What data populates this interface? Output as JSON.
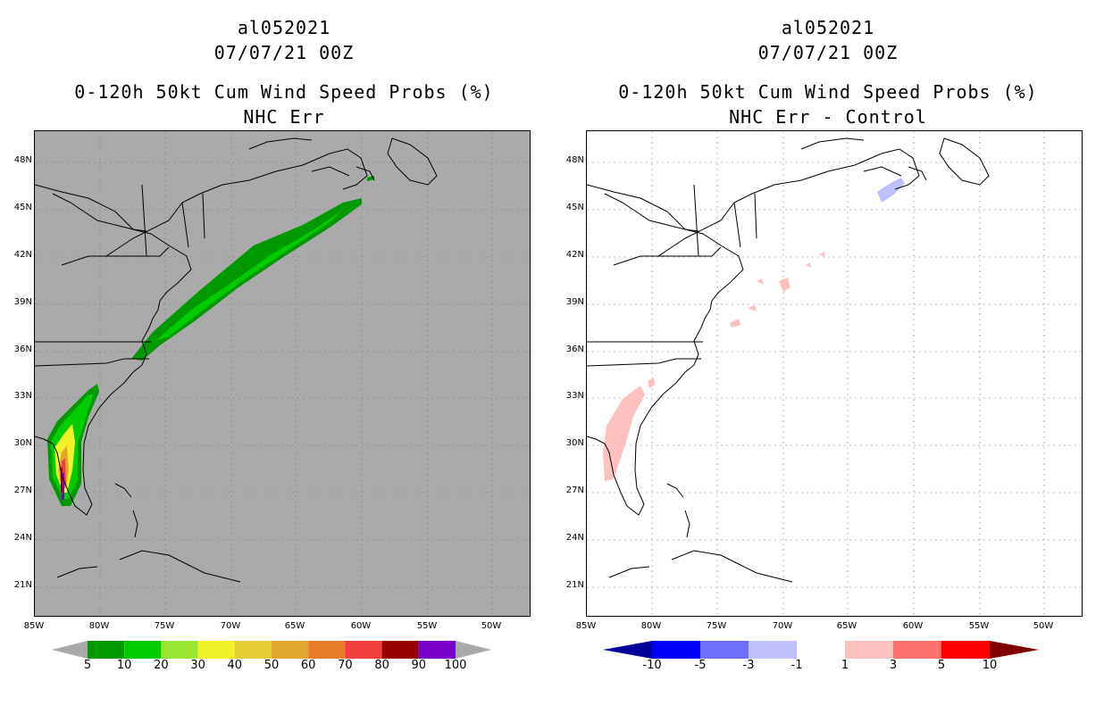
{
  "left": {
    "title1": "al052021",
    "title2": "07/07/21 00Z",
    "title3": "0-120h 50kt Cum Wind Speed Probs (%)",
    "title4": "NHC Err",
    "background": "#aaaaaa",
    "colorbar": {
      "colors": [
        "#009900",
        "#00cc00",
        "#99e633",
        "#f2f229",
        "#e6cc33",
        "#e0a82e",
        "#e67d26",
        "#f24040",
        "#990000",
        "#7a00cc"
      ],
      "labels": [
        "5",
        "10",
        "20",
        "30",
        "40",
        "50",
        "60",
        "70",
        "80",
        "90",
        "100"
      ]
    }
  },
  "right": {
    "title1": "al052021",
    "title2": "07/07/21 00Z",
    "title3": "0-120h 50kt Cum Wind Speed Probs (%)",
    "title4": "NHC Err - Control",
    "background": "#ffffff",
    "colorbar": {
      "colors": [
        "#0000ff",
        "#7070ff",
        "#c0c0ff",
        "#ffffff",
        "#ffc0c0",
        "#ff7070",
        "#ff0000"
      ],
      "end_low": "#000099",
      "end_high": "#800000",
      "labels": [
        "-10",
        "-5",
        "-3",
        "-1",
        "1",
        "3",
        "5",
        "10"
      ]
    }
  },
  "axes": {
    "lat_labels": [
      "48N",
      "45N",
      "42N",
      "39N",
      "36N",
      "33N",
      "30N",
      "27N",
      "24N",
      "21N"
    ],
    "lon_labels": [
      "85W",
      "80W",
      "75W",
      "70W",
      "65W",
      "60W",
      "55W",
      "50W"
    ]
  }
}
